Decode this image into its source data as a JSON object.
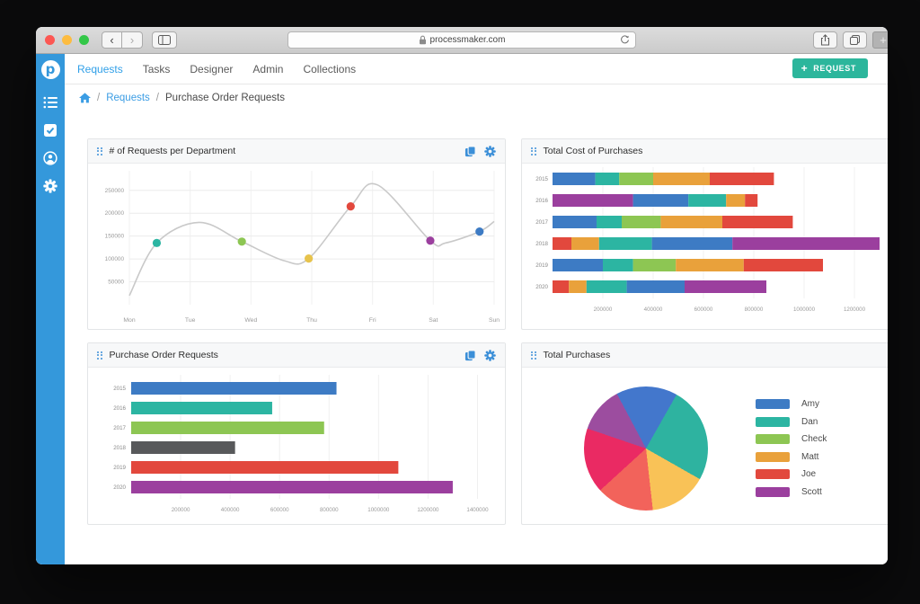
{
  "browser": {
    "url": "processmaker.com",
    "traffic_colors": [
      "#fc5753",
      "#fdbc40",
      "#33c748"
    ]
  },
  "nav": {
    "items": [
      {
        "label": "Requests",
        "active": true
      },
      {
        "label": "Tasks",
        "active": false
      },
      {
        "label": "Designer",
        "active": false
      },
      {
        "label": "Admin",
        "active": false
      },
      {
        "label": "Collections",
        "active": false
      }
    ],
    "request_button": {
      "plus": "+",
      "label": "REQUEST"
    }
  },
  "breadcrumb": {
    "sep": "/",
    "link": "Requests",
    "current": "Purchase Order Requests"
  },
  "palette": {
    "blue": "#3d7bc4",
    "teal": "#2cb5a2",
    "green": "#8dc653",
    "orange": "#e9a13b",
    "red": "#e2483d",
    "purple": "#9b3f9e",
    "gray": "#58595b",
    "yellow": "#e7c34c",
    "sidebar_blue": "#3498db",
    "accent_blue": "#3b8fd8",
    "button_teal": "#2cb69c",
    "line_gray": "#c9c9c9"
  },
  "chart_data": [
    {
      "type": "line",
      "title": "# of Requests per Department",
      "x_labels": [
        "Mon",
        "Tue",
        "Wed",
        "Thu",
        "Fri",
        "Sat",
        "Sun"
      ],
      "y_ticks": [
        50000,
        100000,
        150000,
        200000,
        250000
      ],
      "ylim": [
        0,
        285000
      ],
      "grid": true,
      "curve": [
        [
          0,
          20000
        ],
        [
          0.45,
          135000
        ],
        [
          1.15,
          180000
        ],
        [
          1.85,
          138000
        ],
        [
          2.55,
          96000
        ],
        [
          2.95,
          101000
        ],
        [
          3.64,
          215000
        ],
        [
          4.08,
          262000
        ],
        [
          4.95,
          140000
        ],
        [
          5.2,
          135000
        ],
        [
          5.76,
          160000
        ],
        [
          6,
          182000
        ]
      ],
      "points": [
        {
          "x": 0.45,
          "y": 135000,
          "color": "teal"
        },
        {
          "x": 1.85,
          "y": 138000,
          "color": "green"
        },
        {
          "x": 2.95,
          "y": 101000,
          "color": "yellow"
        },
        {
          "x": 3.64,
          "y": 215000,
          "color": "red"
        },
        {
          "x": 4.95,
          "y": 140000,
          "color": "purple"
        },
        {
          "x": 5.76,
          "y": 160000,
          "color": "blue"
        }
      ]
    },
    {
      "type": "stacked_bar_h",
      "title": "Total Cost of Purchases",
      "x_ticks": [
        200000,
        400000,
        600000,
        800000,
        1000000,
        1200000
      ],
      "xlim": [
        0,
        1300000
      ],
      "rows": [
        {
          "year": "2015",
          "segments": [
            [
              "blue",
              170000
            ],
            [
              "teal",
              95000
            ],
            [
              "green",
              135000
            ],
            [
              "orange",
              225000
            ],
            [
              "red",
              255000
            ]
          ]
        },
        {
          "year": "2016",
          "segments": [
            [
              "purple",
              320000
            ],
            [
              "blue",
              220000
            ],
            [
              "teal",
              150000
            ],
            [
              "orange",
              75000
            ],
            [
              "red",
              50000
            ]
          ]
        },
        {
          "year": "2017",
          "segments": [
            [
              "blue",
              175000
            ],
            [
              "teal",
              100000
            ],
            [
              "green",
              155000
            ],
            [
              "orange",
              245000
            ],
            [
              "red",
              280000
            ]
          ]
        },
        {
          "year": "2018",
          "segments": [
            [
              "red",
              75000
            ],
            [
              "orange",
              110000
            ],
            [
              "teal",
              210000
            ],
            [
              "blue",
              320000
            ],
            [
              "purple",
              585000
            ]
          ]
        },
        {
          "year": "2019",
          "segments": [
            [
              "blue",
              200000
            ],
            [
              "teal",
              120000
            ],
            [
              "green",
              170000
            ],
            [
              "orange",
              270000
            ],
            [
              "red",
              315000
            ]
          ]
        },
        {
          "year": "2020",
          "segments": [
            [
              "red",
              65000
            ],
            [
              "orange",
              70000
            ],
            [
              "teal",
              160000
            ],
            [
              "blue",
              230000
            ],
            [
              "purple",
              325000
            ]
          ]
        }
      ]
    },
    {
      "type": "bar_h",
      "title": "Purchase Order Requests",
      "categories": [
        "2015",
        "2016",
        "2017",
        "2018",
        "2019",
        "2020"
      ],
      "values": [
        830000,
        570000,
        780000,
        420000,
        1080000,
        1300000
      ],
      "colors": [
        "blue",
        "teal",
        "green",
        "gray",
        "red",
        "purple"
      ],
      "x_ticks": [
        200000,
        400000,
        600000,
        800000,
        1000000,
        1200000,
        1400000
      ],
      "xlim": [
        0,
        1460000
      ]
    },
    {
      "type": "pie",
      "title": "Total Purchases",
      "start_angle_deg": -28,
      "slices": [
        {
          "label": "Amy",
          "pct": 16,
          "color": "#4377cc"
        },
        {
          "label": "Dan",
          "pct": 25,
          "color": "#2eb3a0"
        },
        {
          "label": "Check",
          "pct": 15,
          "color": "#f9c257"
        },
        {
          "label": "Matt",
          "pct": 15,
          "color": "#f2635b"
        },
        {
          "label": "Joe",
          "pct": 17,
          "color": "#ea2a63"
        },
        {
          "label": "Scott",
          "pct": 12,
          "color": "#9c4d9f"
        }
      ],
      "legend": [
        {
          "label": "Amy",
          "swatch": "blue"
        },
        {
          "label": "Dan",
          "swatch": "teal"
        },
        {
          "label": "Check",
          "swatch": "green"
        },
        {
          "label": "Matt",
          "swatch": "orange"
        },
        {
          "label": "Joe",
          "swatch": "red"
        },
        {
          "label": "Scott",
          "swatch": "purple"
        }
      ],
      "legend_position": "right"
    }
  ]
}
